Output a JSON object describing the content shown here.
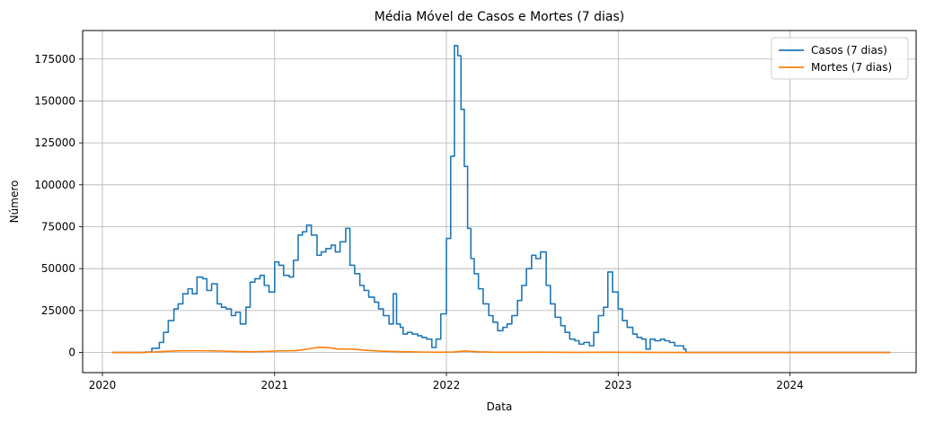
{
  "chart_data": {
    "type": "line",
    "title": "Média Móvel de Casos e Mortes (7 dias)",
    "xlabel": "Data",
    "ylabel": "Número",
    "xlim": [
      "2019-11-20",
      "2024-09-25"
    ],
    "ylim": [
      -12000,
      192000
    ],
    "x_ticks": [
      "2020",
      "2021",
      "2022",
      "2023",
      "2024"
    ],
    "y_ticks": [
      0,
      25000,
      50000,
      75000,
      100000,
      125000,
      150000,
      175000
    ],
    "grid": true,
    "legend_position": "top-right",
    "series": [
      {
        "name": "Casos (7 dias)",
        "color": "#1f77b4",
        "step": true,
        "points": [
          [
            "2020-01-22",
            0
          ],
          [
            "2020-03-01",
            0
          ],
          [
            "2020-04-01",
            300
          ],
          [
            "2020-04-15",
            2500
          ],
          [
            "2020-05-01",
            6000
          ],
          [
            "2020-05-10",
            12000
          ],
          [
            "2020-05-20",
            19000
          ],
          [
            "2020-06-01",
            26000
          ],
          [
            "2020-06-10",
            29000
          ],
          [
            "2020-06-20",
            35000
          ],
          [
            "2020-07-01",
            38000
          ],
          [
            "2020-07-10",
            35000
          ],
          [
            "2020-07-20",
            45000
          ],
          [
            "2020-08-01",
            44000
          ],
          [
            "2020-08-10",
            37000
          ],
          [
            "2020-08-20",
            41000
          ],
          [
            "2020-09-01",
            29000
          ],
          [
            "2020-09-10",
            27000
          ],
          [
            "2020-09-20",
            26000
          ],
          [
            "2020-10-01",
            22000
          ],
          [
            "2020-10-10",
            24000
          ],
          [
            "2020-10-20",
            17000
          ],
          [
            "2020-11-01",
            27000
          ],
          [
            "2020-11-10",
            42000
          ],
          [
            "2020-11-20",
            44000
          ],
          [
            "2020-12-01",
            46000
          ],
          [
            "2020-12-10",
            40000
          ],
          [
            "2020-12-20",
            36000
          ],
          [
            "2021-01-01",
            54000
          ],
          [
            "2021-01-10",
            52000
          ],
          [
            "2021-01-20",
            46000
          ],
          [
            "2021-02-01",
            45000
          ],
          [
            "2021-02-10",
            55000
          ],
          [
            "2021-02-20",
            70000
          ],
          [
            "2021-03-01",
            72000
          ],
          [
            "2021-03-10",
            76000
          ],
          [
            "2021-03-20",
            70000
          ],
          [
            "2021-04-01",
            58000
          ],
          [
            "2021-04-10",
            60000
          ],
          [
            "2021-04-20",
            62000
          ],
          [
            "2021-05-01",
            64000
          ],
          [
            "2021-05-10",
            60000
          ],
          [
            "2021-05-20",
            66000
          ],
          [
            "2021-06-01",
            74000
          ],
          [
            "2021-06-10",
            52000
          ],
          [
            "2021-06-20",
            47000
          ],
          [
            "2021-07-01",
            40000
          ],
          [
            "2021-07-10",
            37000
          ],
          [
            "2021-07-20",
            33000
          ],
          [
            "2021-08-01",
            30000
          ],
          [
            "2021-08-10",
            26000
          ],
          [
            "2021-08-20",
            22000
          ],
          [
            "2021-09-01",
            17000
          ],
          [
            "2021-09-10",
            35000
          ],
          [
            "2021-09-17",
            17000
          ],
          [
            "2021-09-25",
            15000
          ],
          [
            "2021-10-01",
            11000
          ],
          [
            "2021-10-10",
            12000
          ],
          [
            "2021-10-20",
            11000
          ],
          [
            "2021-11-01",
            10000
          ],
          [
            "2021-11-10",
            9000
          ],
          [
            "2021-11-20",
            8000
          ],
          [
            "2021-12-01",
            3000
          ],
          [
            "2021-12-10",
            8000
          ],
          [
            "2021-12-20",
            23000
          ],
          [
            "2022-01-01",
            68000
          ],
          [
            "2022-01-10",
            117000
          ],
          [
            "2022-01-18",
            183000
          ],
          [
            "2022-01-25",
            177000
          ],
          [
            "2022-02-01",
            145000
          ],
          [
            "2022-02-08",
            111000
          ],
          [
            "2022-02-15",
            74000
          ],
          [
            "2022-02-22",
            56000
          ],
          [
            "2022-03-01",
            47000
          ],
          [
            "2022-03-10",
            38000
          ],
          [
            "2022-03-20",
            29000
          ],
          [
            "2022-04-01",
            22000
          ],
          [
            "2022-04-10",
            18000
          ],
          [
            "2022-04-20",
            13000
          ],
          [
            "2022-05-01",
            15000
          ],
          [
            "2022-05-10",
            17000
          ],
          [
            "2022-05-20",
            22000
          ],
          [
            "2022-06-01",
            31000
          ],
          [
            "2022-06-10",
            40000
          ],
          [
            "2022-06-20",
            50000
          ],
          [
            "2022-07-01",
            58000
          ],
          [
            "2022-07-10",
            56000
          ],
          [
            "2022-07-20",
            60000
          ],
          [
            "2022-08-01",
            40000
          ],
          [
            "2022-08-10",
            29000
          ],
          [
            "2022-08-20",
            21000
          ],
          [
            "2022-09-01",
            16000
          ],
          [
            "2022-09-10",
            12000
          ],
          [
            "2022-09-20",
            8000
          ],
          [
            "2022-10-01",
            7000
          ],
          [
            "2022-10-10",
            5000
          ],
          [
            "2022-10-20",
            6000
          ],
          [
            "2022-11-01",
            4000
          ],
          [
            "2022-11-10",
            12000
          ],
          [
            "2022-11-20",
            22000
          ],
          [
            "2022-12-01",
            27000
          ],
          [
            "2022-12-10",
            48000
          ],
          [
            "2022-12-20",
            36000
          ],
          [
            "2023-01-01",
            26000
          ],
          [
            "2023-01-10",
            19000
          ],
          [
            "2023-01-20",
            15000
          ],
          [
            "2023-02-01",
            11000
          ],
          [
            "2023-02-10",
            9000
          ],
          [
            "2023-02-20",
            8000
          ],
          [
            "2023-03-01",
            2000
          ],
          [
            "2023-03-10",
            8000
          ],
          [
            "2023-03-20",
            7000
          ],
          [
            "2023-04-01",
            8000
          ],
          [
            "2023-04-10",
            7000
          ],
          [
            "2023-04-20",
            6000
          ],
          [
            "2023-05-01",
            4000
          ],
          [
            "2023-05-20",
            2000
          ],
          [
            "2023-05-25",
            0
          ],
          [
            "2024-08-01",
            0
          ]
        ]
      },
      {
        "name": "Mortes (7 dias)",
        "color": "#ff7f0e",
        "step": false,
        "points": [
          [
            "2020-01-22",
            0
          ],
          [
            "2020-03-15",
            0
          ],
          [
            "2020-04-15",
            200
          ],
          [
            "2020-05-15",
            700
          ],
          [
            "2020-06-15",
            1000
          ],
          [
            "2020-07-15",
            1050
          ],
          [
            "2020-08-15",
            1000
          ],
          [
            "2020-09-15",
            800
          ],
          [
            "2020-10-15",
            550
          ],
          [
            "2020-11-15",
            450
          ],
          [
            "2020-12-15",
            650
          ],
          [
            "2021-01-15",
            1000
          ],
          [
            "2021-02-15",
            1100
          ],
          [
            "2021-03-15",
            2200
          ],
          [
            "2021-04-05",
            3100
          ],
          [
            "2021-04-25",
            2900
          ],
          [
            "2021-05-15",
            2100
          ],
          [
            "2021-06-15",
            2000
          ],
          [
            "2021-07-15",
            1300
          ],
          [
            "2021-08-15",
            800
          ],
          [
            "2021-09-15",
            550
          ],
          [
            "2021-10-15",
            400
          ],
          [
            "2021-11-15",
            250
          ],
          [
            "2021-12-15",
            150
          ],
          [
            "2022-01-15",
            300
          ],
          [
            "2022-02-10",
            900
          ],
          [
            "2022-03-10",
            400
          ],
          [
            "2022-04-15",
            150
          ],
          [
            "2022-06-15",
            150
          ],
          [
            "2022-07-15",
            250
          ],
          [
            "2022-08-15",
            150
          ],
          [
            "2022-10-15",
            80
          ],
          [
            "2022-12-15",
            150
          ],
          [
            "2023-02-15",
            80
          ],
          [
            "2023-05-25",
            30
          ],
          [
            "2023-06-15",
            0
          ],
          [
            "2024-08-01",
            0
          ]
        ]
      }
    ]
  }
}
